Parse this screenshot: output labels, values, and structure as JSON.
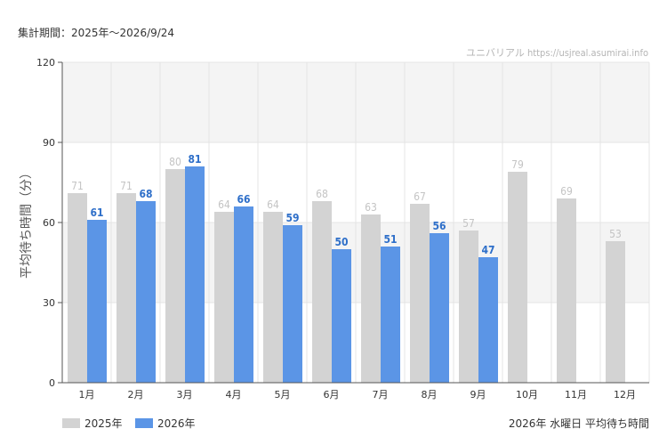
{
  "period_label": "集計期間：2025年～2026/9/24",
  "watermark": "ユニバリアル https://usjreal.asumirai.info",
  "footer_title": "2026年 水曜日 平均待ち時間",
  "colors": {
    "series_2025": "#d3d3d3",
    "series_2026": "#5b95e6",
    "label_2025": "#c4c4c4",
    "label_2026": "#2e6fc9",
    "band": "#f4f4f4",
    "grid": "#e4e4e4",
    "axis": "#555555"
  },
  "chart_data": {
    "type": "bar",
    "ylabel": "平均待ち時間（分）",
    "ylim": [
      0,
      120
    ],
    "yticks": [
      0,
      30,
      60,
      90,
      120
    ],
    "categories": [
      "1月",
      "2月",
      "3月",
      "4月",
      "5月",
      "6月",
      "7月",
      "8月",
      "9月",
      "10月",
      "11月",
      "12月"
    ],
    "series": [
      {
        "name": "2025年",
        "values": [
          71,
          71,
          80,
          64,
          64,
          68,
          63,
          67,
          57,
          79,
          69,
          53
        ]
      },
      {
        "name": "2026年",
        "values": [
          61,
          68,
          81,
          66,
          59,
          50,
          51,
          56,
          47,
          null,
          null,
          null
        ]
      }
    ],
    "legend_position": "bottom-left",
    "grid": true
  }
}
